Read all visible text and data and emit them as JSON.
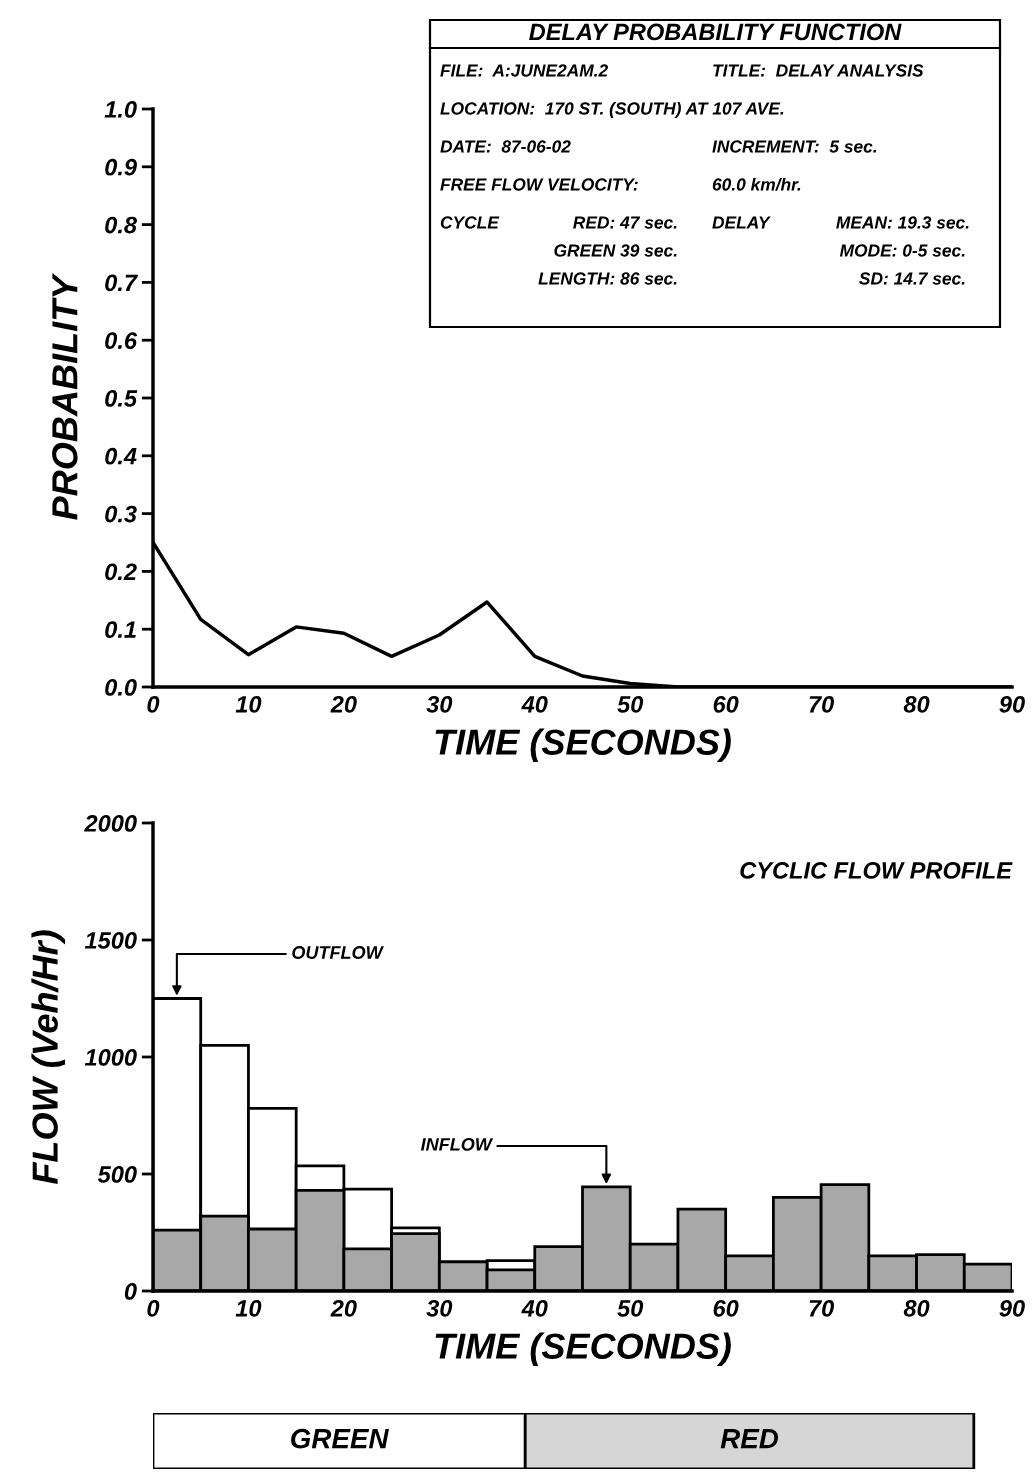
{
  "chart_data": [
    {
      "type": "line",
      "title": "DELAY PROBABILITY FUNCTION",
      "xlabel": "TIME (SECONDS)",
      "ylabel": "PROBABILITY",
      "x": [
        0,
        5,
        10,
        15,
        20,
        25,
        30,
        35,
        40,
        45,
        50,
        55,
        60,
        65,
        70,
        75,
        80,
        85,
        90
      ],
      "series": [
        {
          "color": "#000000",
          "values": [
            0.25,
            0.117,
            0.056,
            0.104,
            0.093,
            0.053,
            0.09,
            0.147,
            0.053,
            0.019,
            0.006,
            0,
            0,
            0,
            0,
            0,
            0,
            0,
            0
          ]
        }
      ],
      "xlim": [
        0,
        90
      ],
      "xticks": [
        0,
        10,
        20,
        30,
        40,
        50,
        60,
        70,
        80,
        90
      ],
      "ylim": [
        0,
        1.0
      ],
      "yticks": [
        {
          "value": 0,
          "label": "0.0"
        },
        0.1,
        0.2,
        0.3,
        0.4,
        0.5,
        0.6,
        0.7,
        0.8,
        0.9,
        {
          "value": 1.0,
          "label": "1.0"
        }
      ],
      "grid": false,
      "marker": "none",
      "line_style": "solid",
      "annotations": [
        "FILE:  A:JUNE2AM.2",
        "TITLE:  DELAY ANALYSIS",
        "LOCATION:  170 ST. (SOUTH) AT 107 AVE.",
        "DATE:  87-06-02",
        "INCREMENT:  5 sec.",
        "FREE FLOW VELOCITY:",
        "60.0 km/hr.",
        "CYCLE",
        "RED: 47 sec.",
        "GREEN 39 sec.",
        "LENGTH: 86 sec.",
        "DELAY",
        "MEAN: 19.3 sec.",
        "MODE: 0-5 sec.",
        "SD: 14.7 sec."
      ]
    },
    {
      "type": "histogram",
      "title": "CYCLIC FLOW PROFILE",
      "xlabel": "TIME (SECONDS)",
      "ylabel": "FLOW (Veh/Hr)",
      "bins": [
        0,
        5,
        10,
        15,
        20,
        25,
        30,
        35,
        40,
        45,
        50,
        55,
        60,
        65,
        70,
        75,
        80,
        85,
        90
      ],
      "series": [
        {
          "color": "#ffffff",
          "values": [
            1250,
            1050,
            780,
            535,
            435,
            270,
            null,
            130,
            null,
            null,
            null,
            null,
            null,
            null,
            null,
            null,
            null,
            null
          ]
        },
        {
          "color": "#a8a8a8",
          "values": [
            260,
            320,
            265,
            430,
            180,
            245,
            125,
            90,
            190,
            445,
            200,
            350,
            150,
            400,
            455,
            150,
            155,
            115
          ]
        }
      ],
      "xlim": [
        0,
        90
      ],
      "xticks": [
        0,
        10,
        20,
        30,
        40,
        50,
        60,
        70,
        80,
        90
      ],
      "ylim": [
        0,
        2000
      ],
      "yticks": [
        0,
        500,
        1000,
        1500,
        2000
      ],
      "grid": false,
      "annotations": [
        {
          "text": "OUTFLOW",
          "x": 2.5,
          "y": 1250
        },
        {
          "text": "INFLOW",
          "x": 47.5,
          "y": 445
        }
      ]
    },
    {
      "type": "bar",
      "orientation": "horizontal",
      "stacked": true,
      "categories": [
        null
      ],
      "series": [
        {
          "name": "GREEN",
          "color": "#ffffff",
          "values": [
            39
          ]
        },
        {
          "name": "RED",
          "color": "#d6d6d6",
          "values": [
            47
          ]
        }
      ],
      "xlim": [
        0,
        90
      ]
    }
  ]
}
